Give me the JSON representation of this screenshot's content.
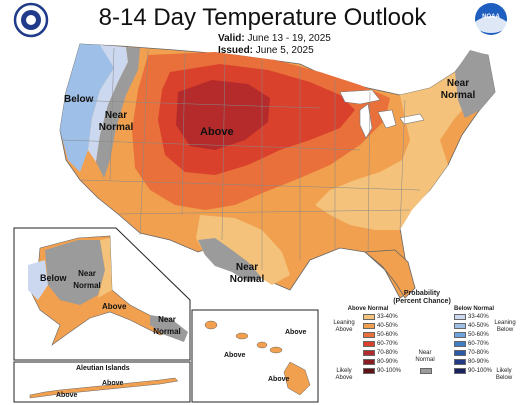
{
  "header": {
    "title": "8-14 Day Temperature Outlook",
    "valid_label": "Valid:",
    "valid_dates": "June 13 - 19, 2025",
    "issued_label": "Issued:",
    "issued_date": "June 5, 2025",
    "left_logo_icon": "doc-seal-icon",
    "right_logo_icon": "noaa-logo-icon",
    "noaa_text": "NOAA"
  },
  "map_labels": {
    "above": "Above",
    "below": "Below",
    "near_normal_west": "Near Normal",
    "near_normal_ne": "Near Normal",
    "near_normal_south": "Near Normal",
    "ak_below": "Below",
    "ak_near_normal": "Near Normal",
    "ak_above": "Above",
    "ak_se_near_normal": "Near Normal",
    "hi_above_1": "Above",
    "hi_above_2": "Above",
    "hi_above_3": "Above",
    "aleutian_title": "Aleutian Islands",
    "aleutian_above_1": "Above",
    "aleutian_above_2": "Above"
  },
  "legend": {
    "title": "Probability (Percent Chance)",
    "above_header": "Above Normal",
    "below_header": "Below Normal",
    "near_normal": "Near Normal",
    "leaning_above": "Leaning Above",
    "likely_above": "Likely Above",
    "leaning_below": "Leaning Below",
    "likely_below": "Likely Below",
    "above_bins": [
      {
        "label": "33-40%",
        "color": "#f4c27a"
      },
      {
        "label": "40-50%",
        "color": "#f1a04f"
      },
      {
        "label": "50-60%",
        "color": "#e9703a"
      },
      {
        "label": "60-70%",
        "color": "#d9412c"
      },
      {
        "label": "70-80%",
        "color": "#b52a2a"
      },
      {
        "label": "80-90%",
        "color": "#8a1d24"
      },
      {
        "label": "90-100%",
        "color": "#5e1218"
      }
    ],
    "below_bins": [
      {
        "label": "33-40%",
        "color": "#cbd8ef"
      },
      {
        "label": "40-50%",
        "color": "#9ec0e8"
      },
      {
        "label": "50-60%",
        "color": "#6fa3db"
      },
      {
        "label": "60-70%",
        "color": "#3e7fc6"
      },
      {
        "label": "70-80%",
        "color": "#2a5aa7"
      },
      {
        "label": "80-90%",
        "color": "#233a86"
      },
      {
        "label": "90-100%",
        "color": "#1a2160"
      }
    ],
    "near_normal_color": "#9b9b9b"
  }
}
